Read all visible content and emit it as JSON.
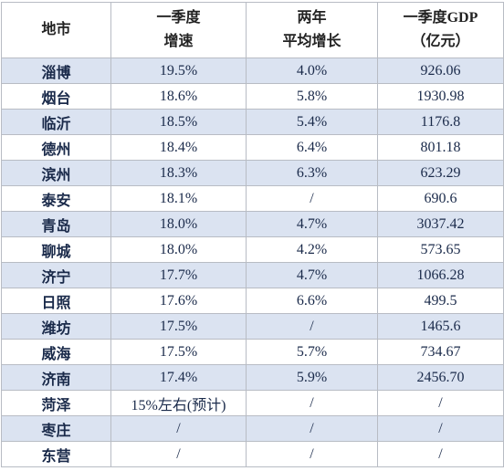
{
  "table": {
    "header": [
      [
        "地市"
      ],
      [
        "一季度",
        "增速"
      ],
      [
        "两年",
        "平均增长"
      ],
      [
        "一季度GDP",
        "（亿元）"
      ]
    ],
    "rows": [
      [
        "淄博",
        "19.5%",
        "4.0%",
        "926.06"
      ],
      [
        "烟台",
        "18.6%",
        "5.8%",
        "1930.98"
      ],
      [
        "临沂",
        "18.5%",
        "5.4%",
        "1176.8"
      ],
      [
        "德州",
        "18.4%",
        "6.4%",
        "801.18"
      ],
      [
        "滨州",
        "18.3%",
        "6.3%",
        "623.29"
      ],
      [
        "泰安",
        "18.1%",
        "/",
        "690.6"
      ],
      [
        "青岛",
        "18.0%",
        "4.7%",
        "3037.42"
      ],
      [
        "聊城",
        "18.0%",
        "4.2%",
        "573.65"
      ],
      [
        "济宁",
        "17.7%",
        "4.7%",
        "1066.28"
      ],
      [
        "日照",
        "17.6%",
        "6.6%",
        "499.5"
      ],
      [
        "潍坊",
        "17.5%",
        "/",
        "1465.6"
      ],
      [
        "威海",
        "17.5%",
        "5.7%",
        "734.67"
      ],
      [
        "济南",
        "17.4%",
        "5.9%",
        "2456.70"
      ],
      [
        "菏泽",
        "15%左右(预计)",
        "/",
        "/"
      ],
      [
        "枣庄",
        "/",
        "/",
        "/"
      ],
      [
        "东营",
        "/",
        "/",
        "/"
      ]
    ]
  }
}
